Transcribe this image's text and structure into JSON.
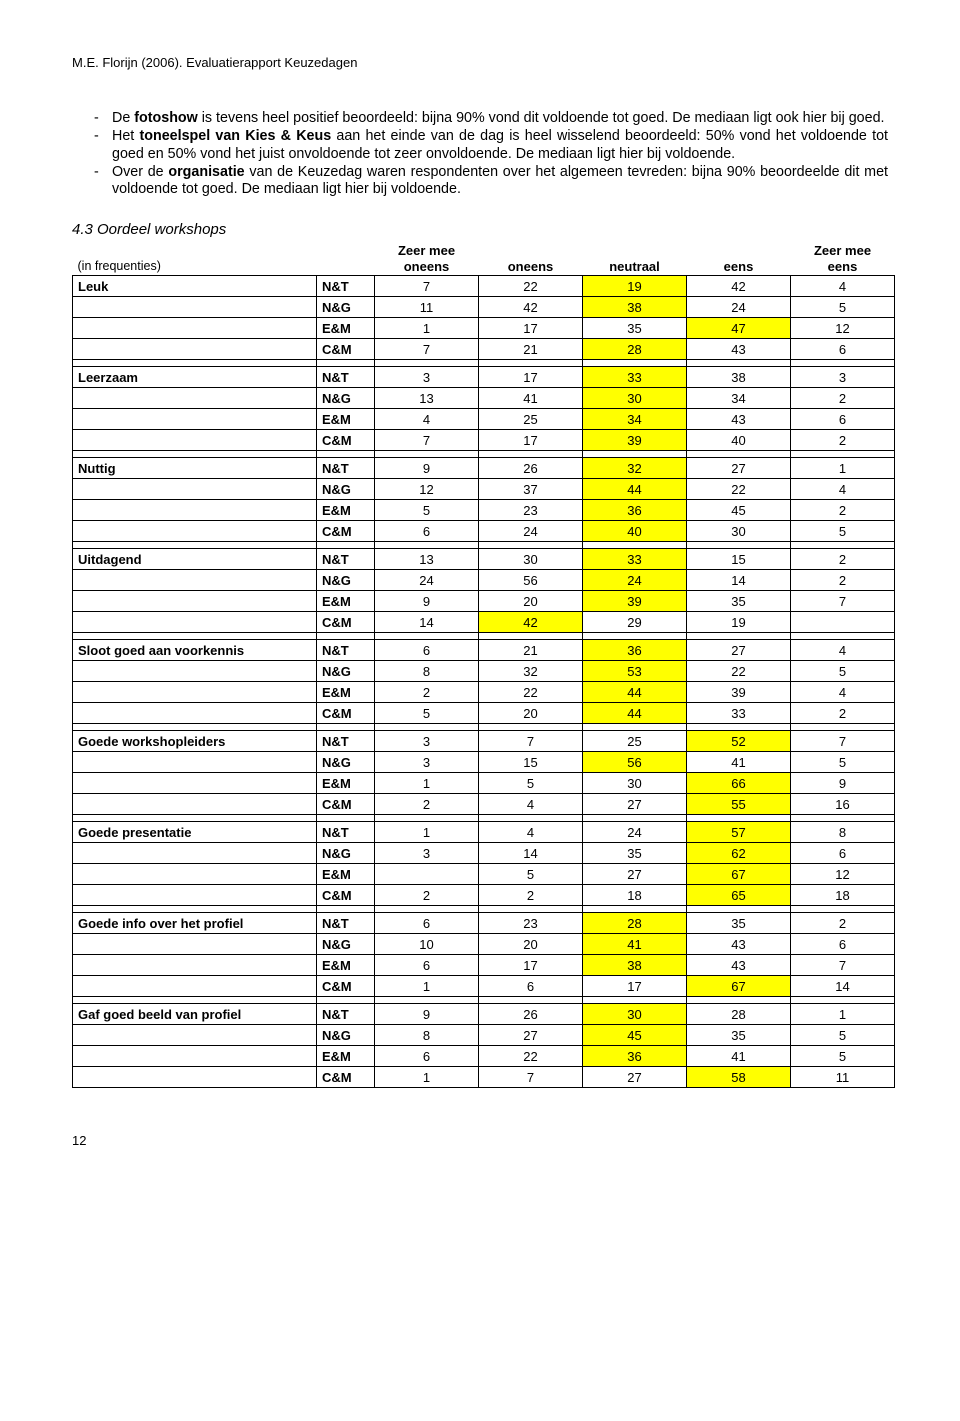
{
  "doc_header": "M.E. Florijn (2006). Evaluatierapport Keuzedagen",
  "bullets": [
    {
      "pre": "De ",
      "b1": "fotoshow",
      "mid": " is tevens heel positief beoordeeld: bijna 90% vond dit voldoende tot goed. De mediaan ligt ook hier bij goed."
    },
    {
      "pre": "Het ",
      "b1": "toneelspel van Kies & Keus",
      "mid": " aan het einde van de dag is heel wisselend beoordeeld: 50% vond het voldoende tot goed en 50% vond het juist onvoldoende tot zeer onvoldoende. De mediaan ligt hier bij voldoende."
    },
    {
      "pre": "Over de ",
      "b1": "organisatie",
      "mid": " van de Keuzedag waren respondenten over het algemeen tevreden: bijna 90% beoordeelde dit met voldoende tot goed. De mediaan ligt hier bij voldoende."
    }
  ],
  "section_title": "4.3   Oordeel workshops",
  "legend_note": "(in frequenties)",
  "col_headers": [
    "Zeer mee oneens",
    "oneens",
    "neutraal",
    "eens",
    "Zeer mee eens"
  ],
  "subs": [
    "N&T",
    "N&G",
    "E&M",
    "C&M"
  ],
  "groups": [
    {
      "label": "Leuk",
      "rows": [
        {
          "v": [
            7,
            22,
            19,
            42,
            4
          ],
          "hl": [
            2
          ]
        },
        {
          "v": [
            11,
            42,
            38,
            24,
            5
          ],
          "hl": [
            2
          ]
        },
        {
          "v": [
            1,
            17,
            35,
            47,
            12
          ],
          "hl": [
            3
          ]
        },
        {
          "v": [
            7,
            21,
            28,
            43,
            6
          ],
          "hl": [
            2
          ]
        }
      ]
    },
    {
      "label": "Leerzaam",
      "rows": [
        {
          "v": [
            3,
            17,
            33,
            38,
            3
          ],
          "hl": [
            2
          ]
        },
        {
          "v": [
            13,
            41,
            30,
            34,
            2
          ],
          "hl": [
            2
          ]
        },
        {
          "v": [
            4,
            25,
            34,
            43,
            6
          ],
          "hl": [
            2
          ]
        },
        {
          "v": [
            7,
            17,
            39,
            40,
            2
          ],
          "hl": [
            2
          ]
        }
      ]
    },
    {
      "label": "Nuttig",
      "rows": [
        {
          "v": [
            9,
            26,
            32,
            27,
            1
          ],
          "hl": [
            2
          ]
        },
        {
          "v": [
            12,
            37,
            44,
            22,
            4
          ],
          "hl": [
            2
          ]
        },
        {
          "v": [
            5,
            23,
            36,
            45,
            2
          ],
          "hl": [
            2
          ]
        },
        {
          "v": [
            6,
            24,
            40,
            30,
            5
          ],
          "hl": [
            2
          ]
        }
      ]
    },
    {
      "label": "Uitdagend",
      "rows": [
        {
          "v": [
            13,
            30,
            33,
            15,
            2
          ],
          "hl": [
            2
          ]
        },
        {
          "v": [
            24,
            56,
            24,
            14,
            2
          ],
          "hl": [
            2
          ]
        },
        {
          "v": [
            9,
            20,
            39,
            35,
            7
          ],
          "hl": [
            2
          ]
        },
        {
          "v": [
            14,
            42,
            29,
            19,
            ""
          ],
          "hl": [
            1
          ]
        }
      ]
    },
    {
      "label": "Sloot goed aan voorkennis",
      "rows": [
        {
          "v": [
            6,
            21,
            36,
            27,
            4
          ],
          "hl": [
            2
          ]
        },
        {
          "v": [
            8,
            32,
            53,
            22,
            5
          ],
          "hl": [
            2
          ]
        },
        {
          "v": [
            2,
            22,
            44,
            39,
            4
          ],
          "hl": [
            2
          ]
        },
        {
          "v": [
            5,
            20,
            44,
            33,
            2
          ],
          "hl": [
            2
          ]
        }
      ]
    },
    {
      "label": "Goede workshopleiders",
      "rows": [
        {
          "v": [
            3,
            7,
            25,
            52,
            7
          ],
          "hl": [
            3
          ]
        },
        {
          "v": [
            3,
            15,
            56,
            41,
            5
          ],
          "hl": [
            2
          ]
        },
        {
          "v": [
            1,
            5,
            30,
            66,
            9
          ],
          "hl": [
            3
          ]
        },
        {
          "v": [
            2,
            4,
            27,
            55,
            16
          ],
          "hl": [
            3
          ]
        }
      ]
    },
    {
      "label": "Goede presentatie",
      "rows": [
        {
          "v": [
            1,
            4,
            24,
            57,
            8
          ],
          "hl": [
            3
          ]
        },
        {
          "v": [
            3,
            14,
            35,
            62,
            6
          ],
          "hl": [
            3
          ]
        },
        {
          "v": [
            "",
            5,
            27,
            67,
            12
          ],
          "hl": [
            3
          ]
        },
        {
          "v": [
            2,
            2,
            18,
            65,
            18
          ],
          "hl": [
            3
          ]
        }
      ]
    },
    {
      "label": "Goede info over het profiel",
      "rows": [
        {
          "v": [
            6,
            23,
            28,
            35,
            2
          ],
          "hl": [
            2
          ]
        },
        {
          "v": [
            10,
            20,
            41,
            43,
            6
          ],
          "hl": [
            2
          ]
        },
        {
          "v": [
            6,
            17,
            38,
            43,
            7
          ],
          "hl": [
            2
          ]
        },
        {
          "v": [
            1,
            6,
            17,
            67,
            14
          ],
          "hl": [
            3
          ]
        }
      ]
    },
    {
      "label": "Gaf goed beeld van profiel",
      "rows": [
        {
          "v": [
            9,
            26,
            30,
            28,
            1
          ],
          "hl": [
            2
          ]
        },
        {
          "v": [
            8,
            27,
            45,
            35,
            5
          ],
          "hl": [
            2
          ]
        },
        {
          "v": [
            6,
            22,
            36,
            41,
            5
          ],
          "hl": [
            2
          ]
        },
        {
          "v": [
            1,
            7,
            27,
            58,
            11
          ],
          "hl": [
            3
          ]
        }
      ]
    }
  ],
  "page_number": "12",
  "colors": {
    "highlight": "#ffff00",
    "text": "#000000",
    "bg": "#ffffff"
  }
}
